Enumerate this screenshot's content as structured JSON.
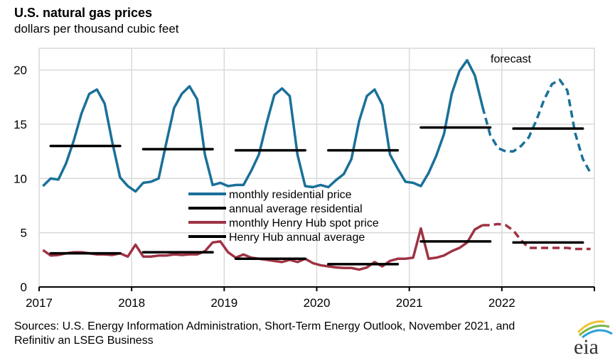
{
  "chart_data": {
    "type": "line",
    "title": "U.S. natural gas prices",
    "subtitle": "dollars per thousand cubic feet",
    "x_start": "2017-01",
    "x_frequency": "monthly",
    "xticks": [
      "2017",
      "2018",
      "2019",
      "2020",
      "2021",
      "2022"
    ],
    "yticks": [
      "0",
      "5",
      "10",
      "15",
      "20"
    ],
    "ylim": [
      0,
      22
    ],
    "grid": true,
    "legend_placement": "center",
    "annotation": "forecast",
    "forecast_start": "2021-11",
    "colors": {
      "residential": "#1a7099",
      "henry_hub": "#9e3344",
      "average": "#000000",
      "grid": "#d9d9d9"
    },
    "series": [
      {
        "name": "monthly residential price",
        "style": "monthly",
        "color": "#1a7099",
        "values": [
          9.3,
          10.0,
          9.9,
          11.4,
          13.5,
          16.0,
          17.8,
          18.2,
          16.9,
          13.3,
          10.1,
          9.3,
          8.8,
          9.6,
          9.7,
          10.0,
          13.3,
          16.5,
          17.8,
          18.5,
          17.3,
          12.2,
          9.4,
          9.6,
          9.3,
          9.4,
          9.4,
          10.7,
          12.2,
          15.1,
          17.7,
          18.3,
          17.6,
          12.2,
          9.3,
          9.2,
          9.4,
          9.2,
          9.85,
          10.4,
          11.8,
          15.3,
          17.6,
          18.2,
          16.8,
          12.2,
          10.9,
          9.7,
          9.6,
          9.3,
          10.5,
          12.1,
          14.1,
          17.8,
          19.9,
          20.9,
          19.5,
          16.6,
          14.0,
          12.8,
          12.5,
          12.5,
          13.0,
          13.8,
          15.4,
          17.3,
          18.7,
          19.1,
          18.1,
          14.2,
          11.8,
          10.5
        ]
      },
      {
        "name": "annual average residential",
        "style": "annual",
        "color": "#000000",
        "values": [
          13.0,
          12.7,
          12.6,
          12.6,
          14.7,
          14.6
        ]
      },
      {
        "name": "monthly Henry Hub spot price",
        "style": "monthly",
        "color": "#9e3344",
        "values": [
          3.4,
          2.9,
          2.95,
          3.1,
          3.2,
          3.2,
          3.1,
          3.0,
          3.0,
          2.95,
          3.1,
          2.8,
          3.9,
          2.8,
          2.8,
          2.9,
          2.9,
          3.0,
          2.95,
          3.0,
          3.0,
          3.3,
          4.1,
          4.2,
          3.2,
          2.7,
          3.0,
          2.7,
          2.6,
          2.5,
          2.4,
          2.3,
          2.5,
          2.3,
          2.6,
          2.2,
          2.0,
          1.9,
          1.8,
          1.75,
          1.75,
          1.6,
          1.8,
          2.3,
          1.9,
          2.4,
          2.6,
          2.6,
          2.7,
          5.4,
          2.6,
          2.7,
          2.9,
          3.3,
          3.6,
          4.1,
          5.3,
          5.7,
          5.7,
          5.8,
          5.7,
          5.2,
          4.3,
          3.6,
          3.6,
          3.6,
          3.6,
          3.6,
          3.6,
          3.5,
          3.5,
          3.5
        ]
      },
      {
        "name": "Henry Hub annual average",
        "style": "annual",
        "color": "#000000",
        "values": [
          3.1,
          3.2,
          2.6,
          2.1,
          4.2,
          4.1
        ]
      }
    ]
  },
  "source": "Sources: U.S. Energy Information Administration, Short-Term Energy Outlook, November 2021, and Refinitiv an LSEG Business",
  "logo": {
    "text": "eia"
  }
}
